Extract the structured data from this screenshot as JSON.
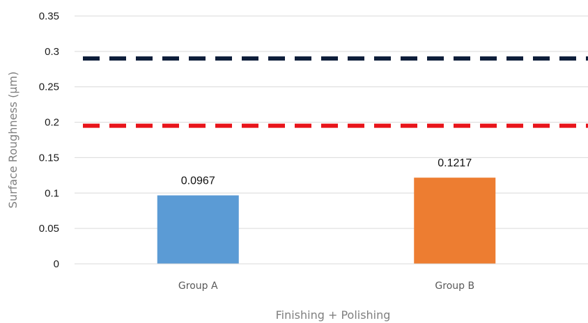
{
  "chart_data": {
    "type": "bar",
    "categories": [
      "Group A",
      "Group B"
    ],
    "values": [
      0.0967,
      0.1217
    ],
    "data_labels": [
      "0.0967",
      "0.1217"
    ],
    "bar_colors": [
      "#5b9bd5",
      "#ed7d31"
    ],
    "xlabel": "Finishing + Polishing",
    "ylabel": "Surface Roughness (µm)",
    "ylim": [
      0,
      0.35
    ],
    "yticks": [
      0,
      0.05,
      0.1,
      0.15,
      0.2,
      0.25,
      0.3,
      0.35
    ],
    "ytick_labels": [
      "0",
      "0.05",
      "0.1",
      "0.15",
      "0.2",
      "0.25",
      "0.3",
      "0.35"
    ],
    "grid": true,
    "grid_color": "#d9d9d9",
    "reference_lines": [
      {
        "value": 0.29,
        "color": "#0e1e3a",
        "style": "dashed"
      },
      {
        "value": 0.195,
        "color": "#e8141a",
        "style": "dashed"
      }
    ]
  }
}
